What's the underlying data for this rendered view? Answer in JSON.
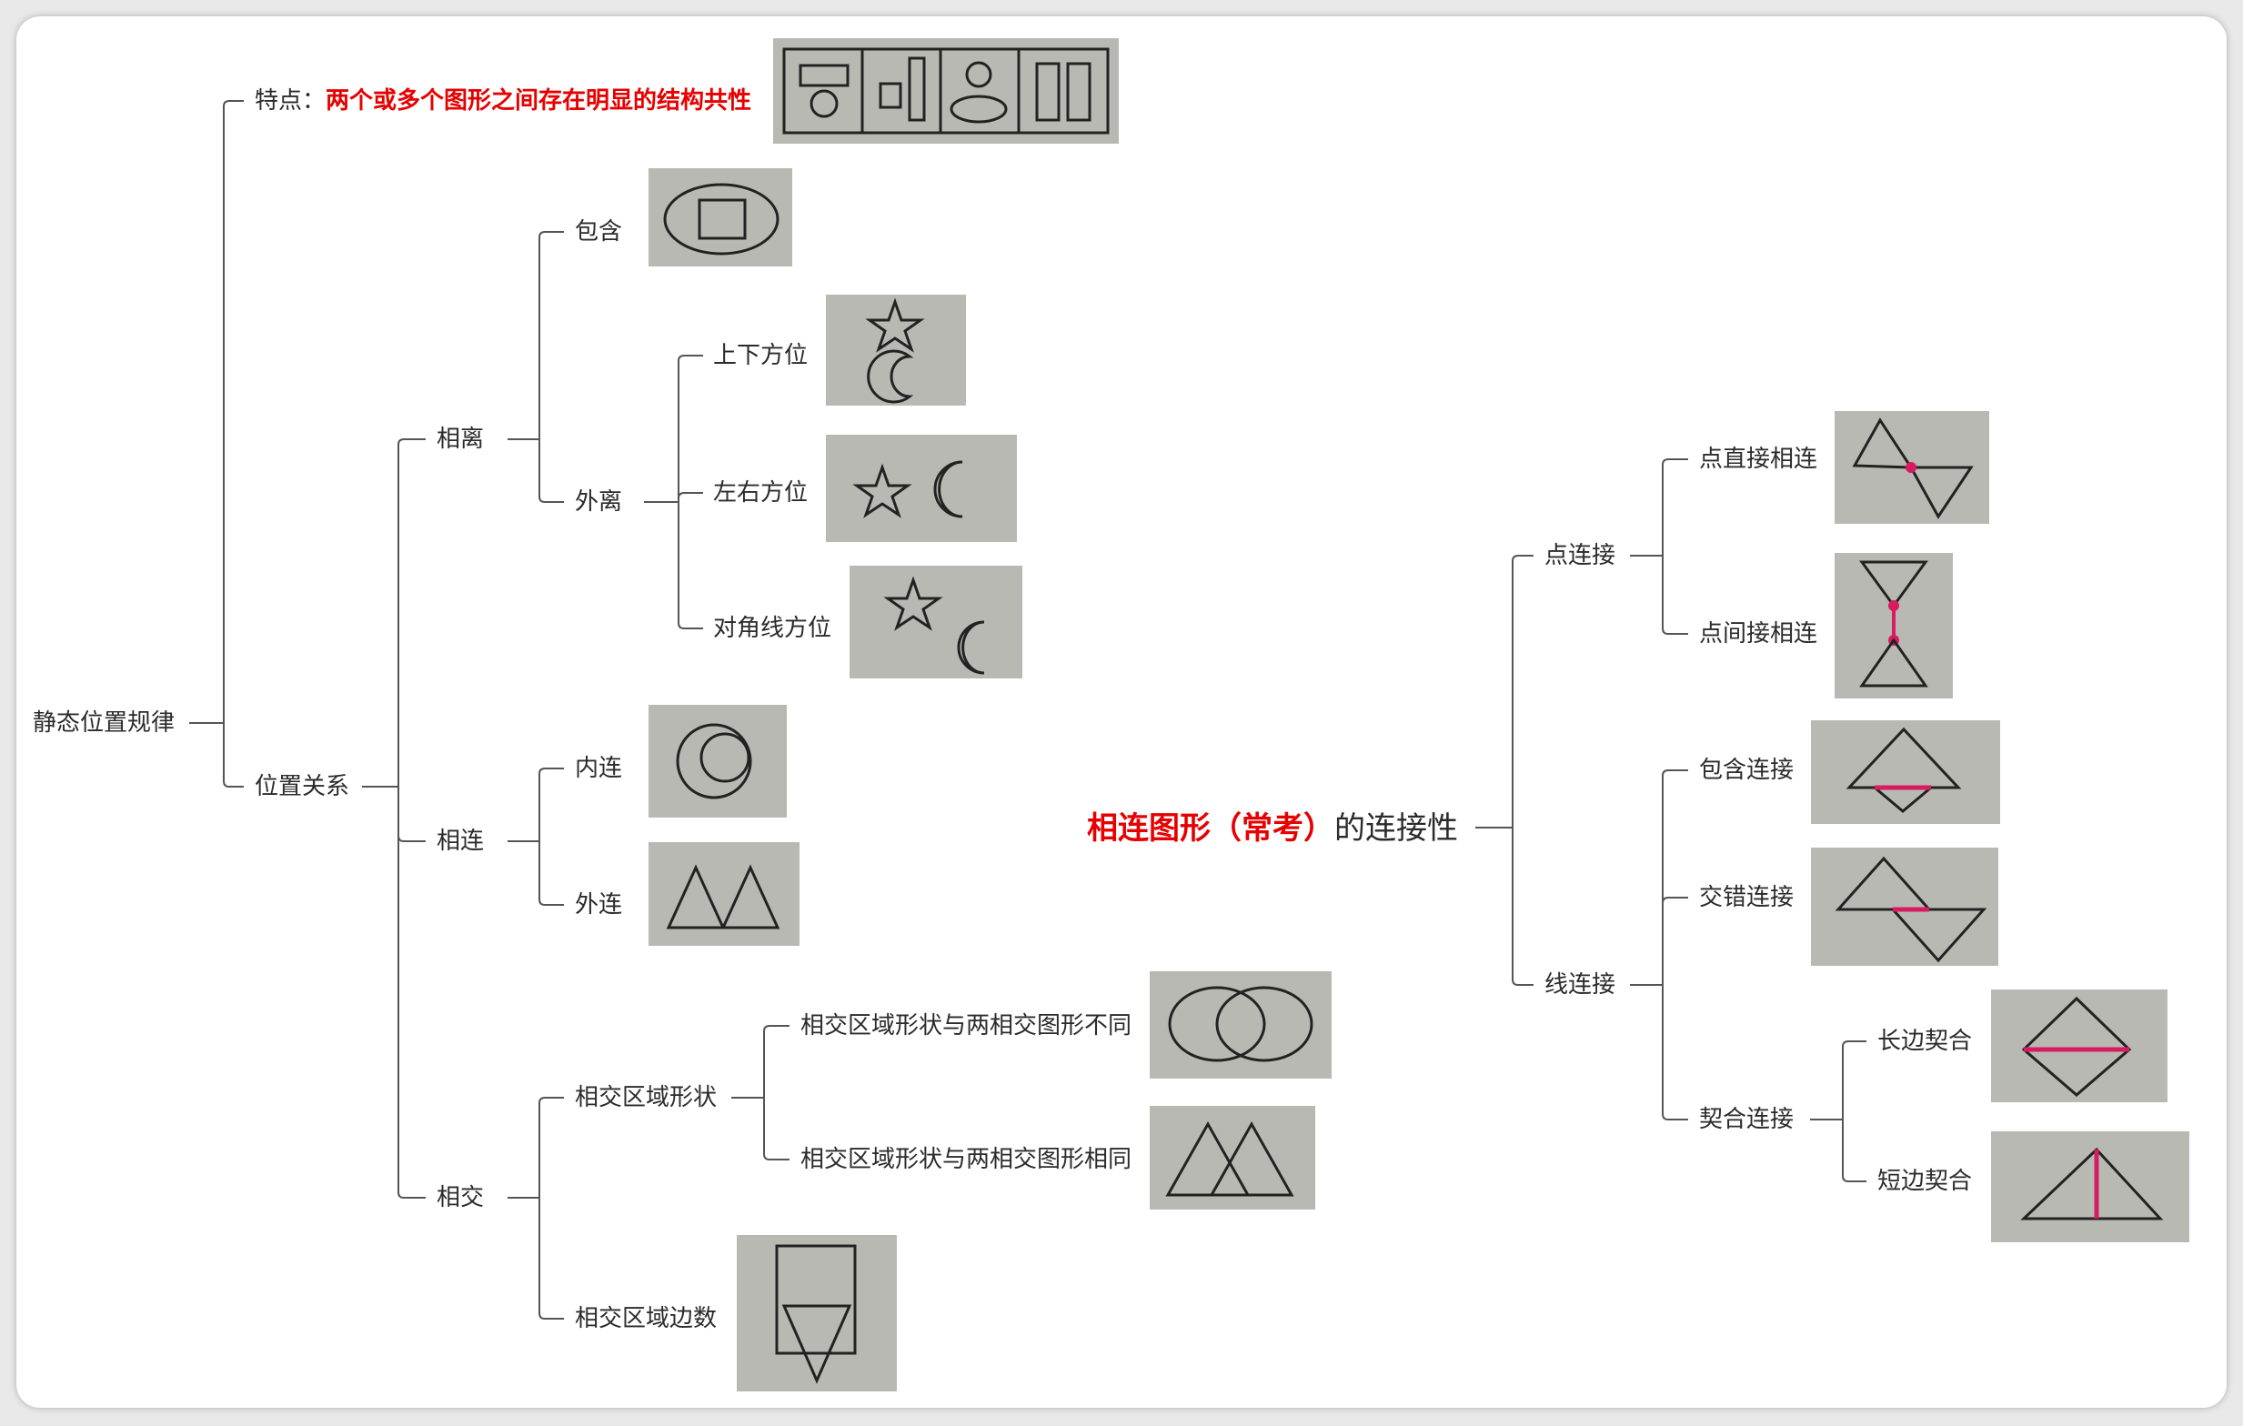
{
  "left": {
    "root": "静态位置规律",
    "feature_label": "特点：",
    "feature_text": "两个或多个图形之间存在明显的结构共性",
    "position_relation": "位置关系",
    "separate": "相离",
    "contain": "包含",
    "external": "外离",
    "up_down": "上下方位",
    "left_right": "左右方位",
    "diagonal": "对角线方位",
    "connected": "相连",
    "inner_connect": "内连",
    "outer_connect": "外连",
    "intersect": "相交",
    "intersect_shape": "相交区域形状",
    "shape_different": "相交区域形状与两相交图形不同",
    "shape_same": "相交区域形状与两相交图形相同",
    "intersect_edges": "相交区域边数"
  },
  "right": {
    "title_red": "相连图形（常考）",
    "title_rest": "的连接性",
    "point_connect": "点连接",
    "point_direct": "点直接相连",
    "point_indirect": "点间接相连",
    "line_connect": "线连接",
    "contain_connect": "包含连接",
    "cross_connect": "交错连接",
    "fit_connect": "契合连接",
    "long_fit": "长边契合",
    "short_fit": "短边契合"
  },
  "colors": {
    "highlight": "#e60000",
    "connector_mark": "#d81b60",
    "line": "#555555"
  }
}
